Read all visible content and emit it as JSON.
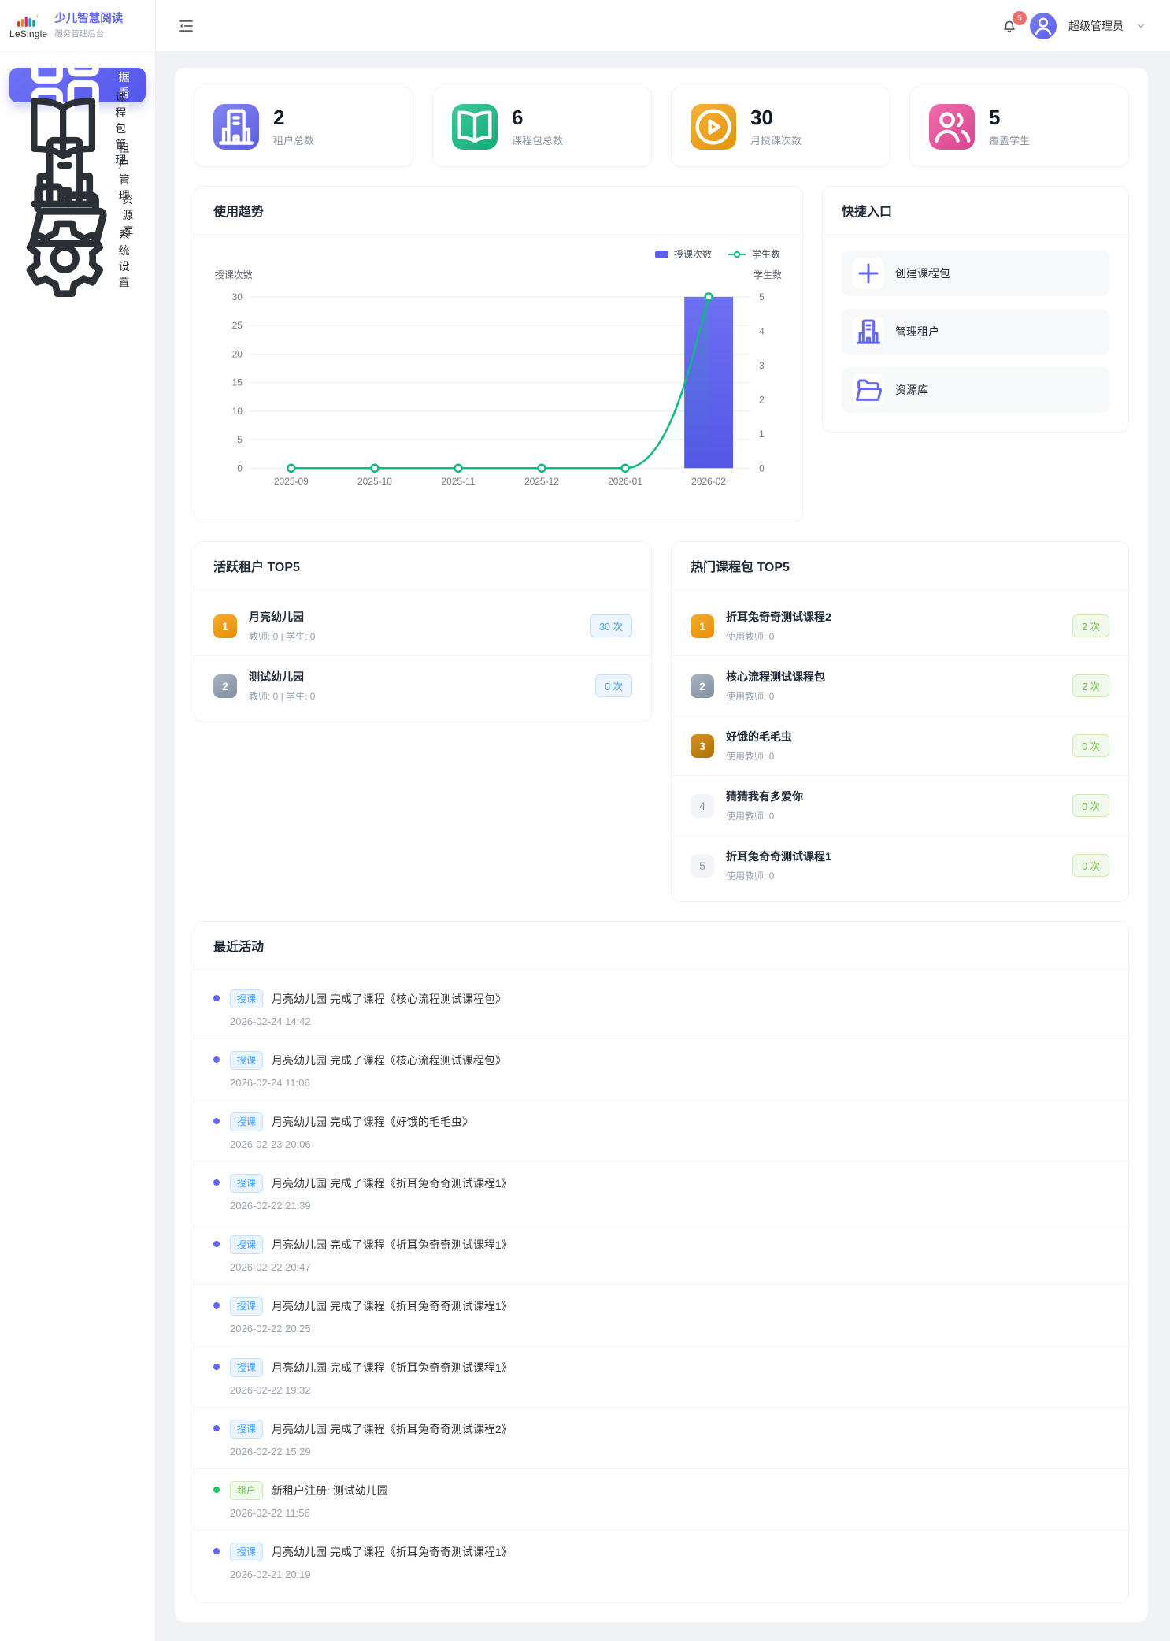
{
  "brand": {
    "logo_text": "LeSingle",
    "title": "少儿智慧阅读",
    "subtitle": "服务管理后台"
  },
  "colors": {
    "accent": "#6366f1",
    "success_green": "#67c23a",
    "link_blue": "#409eff",
    "warning_orange": "#f59e0b",
    "pink": "#ec4899",
    "danger_red": "#f56c6c",
    "line_green": "#10b981",
    "bar_purple": "#5b5ee8"
  },
  "sidebar": {
    "items": [
      {
        "label": "数据看板",
        "icon": "dashboard",
        "state": "active"
      },
      {
        "label": "课程包管理",
        "icon": "book"
      },
      {
        "label": "租户管理",
        "icon": "building"
      },
      {
        "label": "资源库",
        "icon": "folder"
      },
      {
        "label": "系统设置",
        "icon": "gear"
      }
    ]
  },
  "header": {
    "collapse_icon": "menu-fold",
    "bell_icon": "bell",
    "notification_count": "5",
    "user_name": "超级管理员",
    "avatar_icon": "user",
    "chevron_icon": "chevron-down"
  },
  "stats": [
    {
      "value": "2",
      "label": "租户总数",
      "icon": "building",
      "color": "#6366f1"
    },
    {
      "value": "6",
      "label": "课程包总数",
      "icon": "book",
      "color": "#10b981"
    },
    {
      "value": "30",
      "label": "月授课次数",
      "icon": "play-circle",
      "color": "#f59e0b"
    },
    {
      "value": "5",
      "label": "覆盖学生",
      "icon": "users",
      "color": "#ec4899"
    }
  ],
  "usage_trend": {
    "title": "使用趋势"
  },
  "chart_data": {
    "type": "bar",
    "title": "使用趋势",
    "categories": [
      "2025-09",
      "2025-10",
      "2025-11",
      "2025-12",
      "2026-01",
      "2026-02"
    ],
    "series": [
      {
        "name": "授课次数",
        "type": "bar",
        "axis": "left",
        "color": "#5b5ee8",
        "values": [
          0,
          0,
          0,
          0,
          0,
          30
        ]
      },
      {
        "name": "学生数",
        "type": "line",
        "axis": "right",
        "color": "#10b981",
        "values": [
          0,
          0,
          0,
          0,
          0,
          5
        ]
      }
    ],
    "left_axis": {
      "label": "授课次数",
      "range": [
        0,
        30
      ],
      "ticks": [
        0,
        5,
        10,
        15,
        20,
        25,
        30
      ]
    },
    "right_axis": {
      "label": "学生数",
      "range": [
        0,
        5
      ],
      "ticks": [
        0,
        1,
        2,
        3,
        4,
        5
      ]
    },
    "grid": true,
    "legend_position": "top-right"
  },
  "quick_entry": {
    "title": "快捷入口",
    "items": [
      {
        "label": "创建课程包",
        "icon": "plus"
      },
      {
        "label": "管理租户",
        "icon": "building"
      },
      {
        "label": "资源库",
        "icon": "folder"
      }
    ]
  },
  "active_tenants": {
    "title": "活跃租户 TOP5",
    "items": [
      {
        "rank": "1",
        "tier": "gold",
        "name": "月亮幼儿园",
        "meta": "教师: 0 | 学生: 0",
        "count": "30 次",
        "pill": "blue"
      },
      {
        "rank": "2",
        "tier": "silver",
        "name": "测试幼儿园",
        "meta": "教师: 0 | 学生: 0",
        "count": "0 次",
        "pill": "blue"
      }
    ]
  },
  "hot_packages": {
    "title": "热门课程包 TOP5",
    "items": [
      {
        "rank": "1",
        "tier": "gold",
        "name": "折耳兔奇奇测试课程2",
        "meta": "使用教师: 0",
        "count": "2 次",
        "pill": "green"
      },
      {
        "rank": "2",
        "tier": "silver",
        "name": "核心流程测试课程包",
        "meta": "使用教师: 0",
        "count": "2 次",
        "pill": "green"
      },
      {
        "rank": "3",
        "tier": "bronze",
        "name": "好饿的毛毛虫",
        "meta": "使用教师: 0",
        "count": "0 次",
        "pill": "green"
      },
      {
        "rank": "4",
        "tier": "plain",
        "name": "猜猜我有多爱你",
        "meta": "使用教师: 0",
        "count": "0 次",
        "pill": "green"
      },
      {
        "rank": "5",
        "tier": "plain",
        "name": "折耳兔奇奇测试课程1",
        "meta": "使用教师: 0",
        "count": "0 次",
        "pill": "green"
      }
    ]
  },
  "recent_activities": {
    "title": "最近活动",
    "items": [
      {
        "type": "授课",
        "variant": "blue",
        "text": "月亮幼儿园 完成了课程《核心流程测试课程包》",
        "time": "2026-02-24 14:42"
      },
      {
        "type": "授课",
        "variant": "blue",
        "text": "月亮幼儿园 完成了课程《核心流程测试课程包》",
        "time": "2026-02-24 11:06"
      },
      {
        "type": "授课",
        "variant": "blue",
        "text": "月亮幼儿园 完成了课程《好饿的毛毛虫》",
        "time": "2026-02-23 20:06"
      },
      {
        "type": "授课",
        "variant": "blue",
        "text": "月亮幼儿园 完成了课程《折耳兔奇奇测试课程1》",
        "time": "2026-02-22 21:39"
      },
      {
        "type": "授课",
        "variant": "blue",
        "text": "月亮幼儿园 完成了课程《折耳兔奇奇测试课程1》",
        "time": "2026-02-22 20:47"
      },
      {
        "type": "授课",
        "variant": "blue",
        "text": "月亮幼儿园 完成了课程《折耳兔奇奇测试课程1》",
        "time": "2026-02-22 20:25"
      },
      {
        "type": "授课",
        "variant": "blue",
        "text": "月亮幼儿园 完成了课程《折耳兔奇奇测试课程1》",
        "time": "2026-02-22 19:32"
      },
      {
        "type": "授课",
        "variant": "blue",
        "text": "月亮幼儿园 完成了课程《折耳兔奇奇测试课程2》",
        "time": "2026-02-22 15:29"
      },
      {
        "type": "租户",
        "variant": "green",
        "text": "新租户注册: 测试幼儿园",
        "time": "2026-02-22 11:56"
      },
      {
        "type": "授课",
        "variant": "blue",
        "text": "月亮幼儿园 完成了课程《折耳兔奇奇测试课程1》",
        "time": "2026-02-21 20:19"
      }
    ]
  }
}
